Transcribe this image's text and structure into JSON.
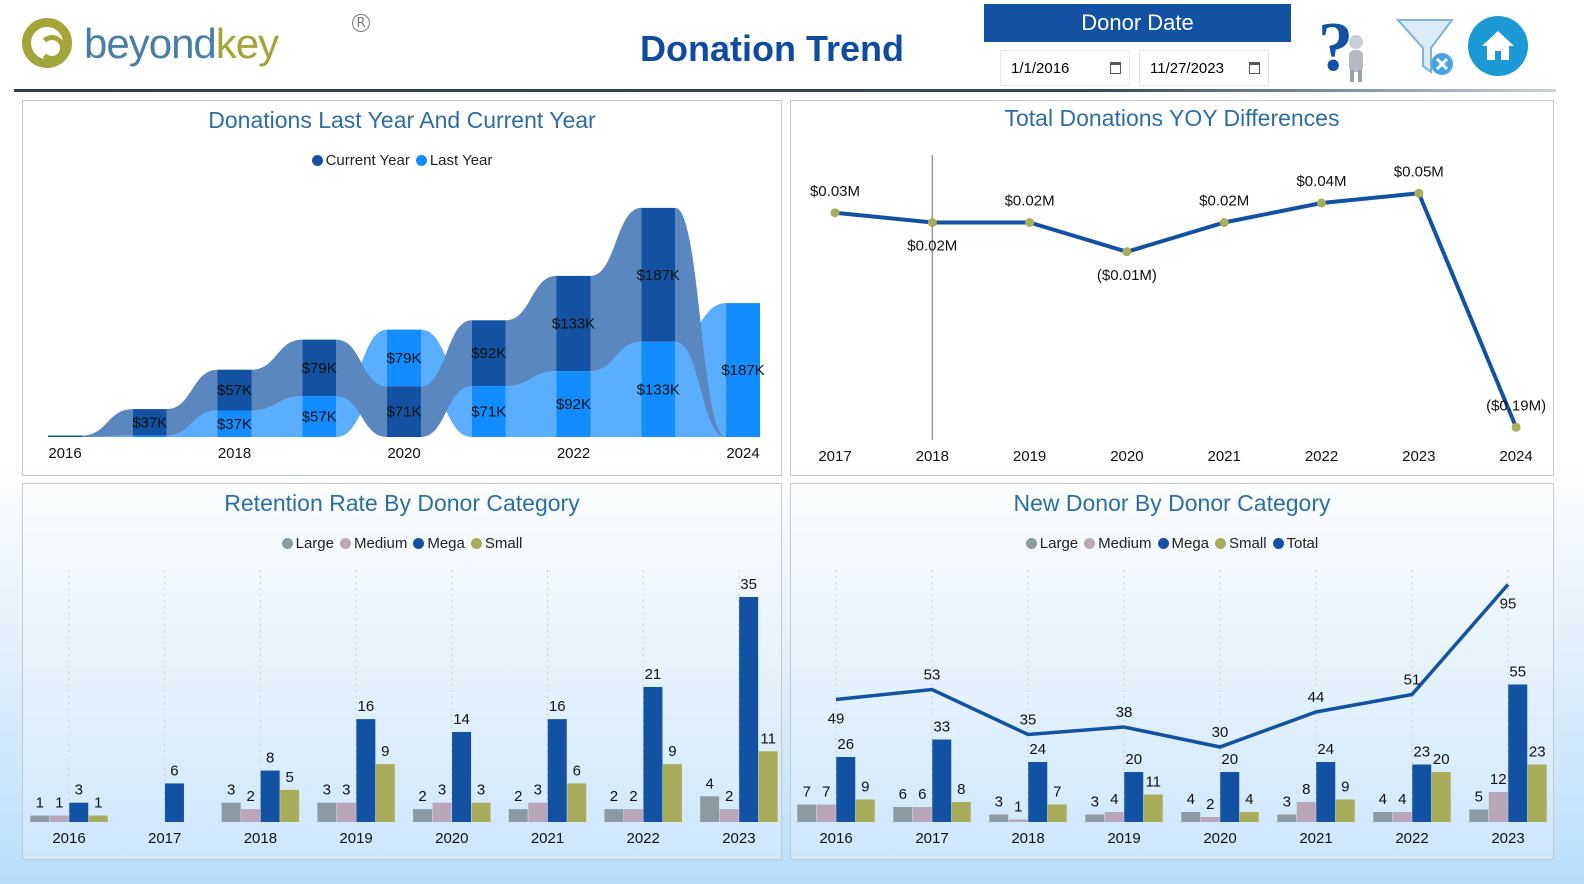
{
  "header": {
    "logo_text_1": "beyond",
    "logo_text_2": "key",
    "logo_mark": "®",
    "title": "Donation Trend",
    "date_filter": {
      "label": "Donor Date",
      "start": "1/1/2016",
      "end": "11/27/2023"
    },
    "icons": [
      "help-person-icon",
      "clear-filter-icon",
      "home-icon"
    ]
  },
  "colors": {
    "current_year": "#1352A3",
    "last_year": "#118DFF",
    "large": "#8C9BA3",
    "medium": "#B9A6B7",
    "mega": "#1352A3",
    "small": "#A7AD5A",
    "total": "#1352A3",
    "line": "#1352A3",
    "marker": "#A7AD5A"
  },
  "panels": {
    "ribbon": {
      "title": "Donations Last Year And Current Year",
      "legend": [
        "Current Year",
        "Last Year"
      ]
    },
    "yoy": {
      "title": "Total Donations YOY Differences"
    },
    "retention": {
      "title": "Retention Rate By Donor Category",
      "legend": [
        "Large",
        "Medium",
        "Mega",
        "Small"
      ]
    },
    "newdonor": {
      "title": "New Donor By Donor Category",
      "legend": [
        "Large",
        "Medium",
        "Mega",
        "Small",
        "Total"
      ]
    }
  },
  "chart_data": [
    {
      "type": "ribbon",
      "title": "Donations Last Year And Current Year",
      "categories": [
        "2016",
        "2017",
        "2018",
        "2019",
        "2020",
        "2021",
        "2022",
        "2023",
        "2024"
      ],
      "x_tick_labels": [
        "2016",
        "2018",
        "2020",
        "2022",
        "2024"
      ],
      "series": [
        {
          "name": "Current Year",
          "values": [
            2,
            37,
            57,
            79,
            71,
            92,
            133,
            187,
            0
          ],
          "labels": [
            null,
            "$37K",
            "$57K",
            "$79K",
            "$71K",
            "$92K",
            "$133K",
            "$187K",
            null
          ]
        },
        {
          "name": "Last Year",
          "values": [
            0,
            2,
            37,
            57,
            79,
            71,
            92,
            133,
            187
          ],
          "labels": [
            null,
            null,
            "$37K",
            "$57K",
            "$79K",
            "$71K",
            "$92K",
            "$133K",
            "$187K"
          ]
        }
      ],
      "unit": "$K"
    },
    {
      "type": "line",
      "title": "Total Donations YOY Differences",
      "categories": [
        "2017",
        "2018",
        "2019",
        "2020",
        "2021",
        "2022",
        "2023",
        "2024"
      ],
      "values": [
        0.03,
        0.02,
        0.02,
        -0.01,
        0.02,
        0.04,
        0.05,
        -0.19
      ],
      "labels": [
        "$0.03M",
        "$0.02M",
        "$0.02M",
        "($0.01M)",
        "$0.02M",
        "$0.04M",
        "$0.05M",
        "($0.19M)"
      ],
      "unit": "$M",
      "highlight_category": "2018"
    },
    {
      "type": "bar",
      "title": "Retention Rate By Donor Category",
      "categories": [
        "2016",
        "2017",
        "2018",
        "2019",
        "2020",
        "2021",
        "2022",
        "2023"
      ],
      "series": [
        {
          "name": "Large",
          "values": [
            1,
            null,
            3,
            3,
            2,
            2,
            2,
            4
          ]
        },
        {
          "name": "Medium",
          "values": [
            1,
            null,
            2,
            3,
            3,
            3,
            2,
            2
          ]
        },
        {
          "name": "Mega",
          "values": [
            3,
            6,
            8,
            16,
            14,
            16,
            21,
            35
          ]
        },
        {
          "name": "Small",
          "values": [
            1,
            null,
            5,
            9,
            3,
            6,
            9,
            11
          ]
        }
      ],
      "legend": "top"
    },
    {
      "type": "bar+line",
      "title": "New Donor By Donor Category",
      "categories": [
        "2016",
        "2017",
        "2018",
        "2019",
        "2020",
        "2021",
        "2022",
        "2023"
      ],
      "series": [
        {
          "name": "Large",
          "values": [
            7,
            6,
            3,
            3,
            4,
            3,
            4,
            5
          ]
        },
        {
          "name": "Medium",
          "values": [
            7,
            6,
            1,
            4,
            2,
            8,
            4,
            12
          ]
        },
        {
          "name": "Mega",
          "values": [
            26,
            33,
            24,
            20,
            20,
            24,
            23,
            55
          ]
        },
        {
          "name": "Small",
          "values": [
            9,
            8,
            7,
            11,
            4,
            9,
            20,
            23
          ]
        },
        {
          "name": "Total",
          "type": "line",
          "values": [
            49,
            53,
            35,
            38,
            30,
            44,
            51,
            95
          ]
        }
      ],
      "legend": "top"
    }
  ]
}
